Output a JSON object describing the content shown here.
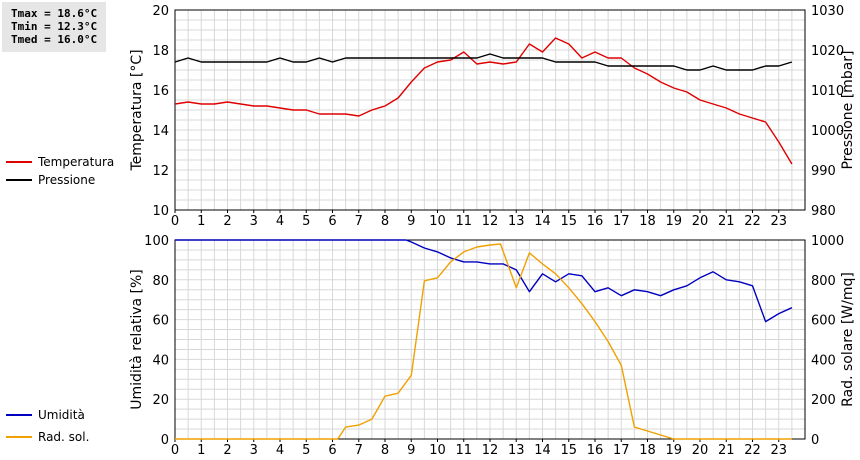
{
  "stats": {
    "tmax": "Tmax = 18.6°C",
    "tmin": "Tmin = 12.3°C",
    "tmed": "Tmed = 16.0°C"
  },
  "chart_data": [
    {
      "type": "line",
      "xlim": [
        0,
        24
      ],
      "x_ticks": [
        "0",
        "1",
        "2",
        "3",
        "4",
        "5",
        "6",
        "7",
        "8",
        "9",
        "10",
        "11",
        "12",
        "13",
        "14",
        "15",
        "16",
        "17",
        "18",
        "19",
        "20",
        "21",
        "22",
        "23"
      ],
      "ylabel": "Temperatura [°C]",
      "ylim": [
        10,
        20
      ],
      "y_ticks": [
        "10",
        "12",
        "14",
        "16",
        "18",
        "20"
      ],
      "y2label": "Pressione [mbar]",
      "y2lim": [
        980,
        1030
      ],
      "y2_ticks": [
        "980",
        "990",
        "1000",
        "1010",
        "1020",
        "1030"
      ],
      "grid": true,
      "series": [
        {
          "name": "Temperatura",
          "axis": "left",
          "color": "#e00000",
          "x": [
            0,
            0.5,
            1,
            1.5,
            2,
            2.5,
            3,
            3.5,
            4,
            4.5,
            5,
            5.5,
            6,
            6.5,
            7,
            7.5,
            8,
            8.5,
            9,
            9.5,
            10,
            10.5,
            11,
            11.5,
            12,
            12.5,
            13,
            13.5,
            14,
            14.5,
            15,
            15.5,
            16,
            16.5,
            17,
            17.5,
            18,
            18.5,
            19,
            19.5,
            20,
            20.5,
            21,
            21.5,
            22,
            22.5,
            23,
            23.5
          ],
          "values": [
            15.3,
            15.4,
            15.3,
            15.3,
            15.4,
            15.3,
            15.2,
            15.2,
            15.1,
            15.0,
            15.0,
            14.8,
            14.8,
            14.8,
            14.7,
            15.0,
            15.2,
            15.6,
            16.4,
            17.1,
            17.4,
            17.5,
            17.9,
            17.3,
            17.4,
            17.3,
            17.4,
            18.3,
            17.9,
            18.6,
            18.3,
            17.6,
            17.9,
            17.6,
            17.6,
            17.1,
            16.8,
            16.4,
            16.1,
            15.9,
            15.5,
            15.3,
            15.1,
            14.8,
            14.6,
            14.4,
            13.4,
            12.3
          ]
        },
        {
          "name": "Pressione",
          "axis": "right",
          "color": "#000000",
          "x": [
            0,
            0.5,
            1,
            1.5,
            2,
            2.5,
            3,
            3.5,
            4,
            4.5,
            5,
            5.5,
            6,
            6.5,
            7,
            7.5,
            8,
            8.5,
            9,
            9.5,
            10,
            10.5,
            11,
            11.5,
            12,
            12.5,
            13,
            13.5,
            14,
            14.5,
            15,
            15.5,
            16,
            16.5,
            17,
            17.5,
            18,
            18.5,
            19,
            19.5,
            20,
            20.5,
            21,
            21.5,
            22,
            22.5,
            23,
            23.5
          ],
          "values": [
            1017,
            1018,
            1017,
            1017,
            1017,
            1017,
            1017,
            1017,
            1018,
            1017,
            1017,
            1018,
            1017,
            1018,
            1018,
            1018,
            1018,
            1018,
            1018,
            1018,
            1018,
            1018,
            1018,
            1018,
            1019,
            1018,
            1018,
            1018,
            1018,
            1017,
            1017,
            1017,
            1017,
            1016,
            1016,
            1016,
            1016,
            1016,
            1016,
            1015,
            1015,
            1016,
            1015,
            1015,
            1015,
            1016,
            1016,
            1017
          ]
        }
      ]
    },
    {
      "type": "line",
      "xlim": [
        0,
        24
      ],
      "x_ticks": [
        "0",
        "1",
        "2",
        "3",
        "4",
        "5",
        "6",
        "7",
        "8",
        "9",
        "10",
        "11",
        "12",
        "13",
        "14",
        "15",
        "16",
        "17",
        "18",
        "19",
        "20",
        "21",
        "22",
        "23"
      ],
      "ylabel": "Umidità relativa [%]",
      "ylim": [
        0,
        100
      ],
      "y_ticks": [
        "0",
        "20",
        "40",
        "60",
        "80",
        "100"
      ],
      "y2label": "Rad. solare [W/mq]",
      "y2lim": [
        0,
        1000
      ],
      "y2_ticks": [
        "0",
        "200",
        "400",
        "600",
        "800",
        "1000"
      ],
      "grid": true,
      "series": [
        {
          "name": "Umidità",
          "axis": "left",
          "color": "#0000c0",
          "x": [
            0,
            1,
            2,
            3,
            4,
            5,
            6,
            7,
            8,
            8.8,
            9,
            9.5,
            10,
            10.5,
            11,
            11.5,
            12,
            12.5,
            13,
            13.5,
            14,
            14.5,
            15,
            15.5,
            16,
            16.5,
            17,
            17.5,
            18,
            18.5,
            19,
            19.5,
            20,
            20.5,
            21,
            21.5,
            22,
            22.5,
            23,
            23.5
          ],
          "values": [
            100,
            100,
            100,
            100,
            100,
            100,
            100,
            100,
            100,
            100,
            99,
            96,
            94,
            91,
            89,
            89,
            88,
            88,
            85,
            74,
            83,
            79,
            83,
            82,
            74,
            76,
            72,
            75,
            74,
            72,
            75,
            77,
            81,
            84,
            80,
            79,
            77,
            59,
            63,
            66
          ]
        },
        {
          "name": "Rad. sol.",
          "axis": "right",
          "color": "#f0a000",
          "x": [
            0,
            1,
            2,
            3,
            4,
            5,
            6,
            6.2,
            6.5,
            7,
            7.5,
            8,
            8.5,
            9,
            9.5,
            10,
            10.5,
            11,
            11.5,
            12,
            12.4,
            13,
            13.5,
            14,
            14.5,
            15,
            15.5,
            16,
            16.5,
            17,
            17.5,
            18,
            18.5,
            19,
            19.5,
            20,
            21,
            22,
            23,
            23.5
          ],
          "values": [
            0,
            0,
            0,
            0,
            0,
            0,
            0,
            0,
            60,
            70,
            100,
            215,
            230,
            320,
            795,
            810,
            890,
            940,
            965,
            975,
            980,
            760,
            935,
            880,
            830,
            760,
            680,
            590,
            490,
            370,
            60,
            40,
            20,
            0,
            0,
            0,
            0,
            0,
            0,
            0
          ]
        }
      ]
    }
  ]
}
